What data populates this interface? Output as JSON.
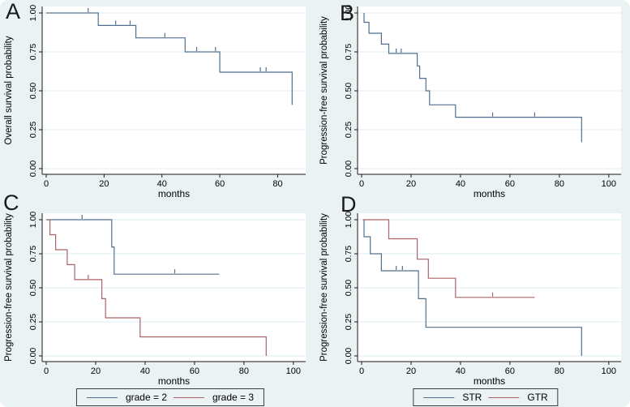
{
  "figure": {
    "background": "#eaf2f3",
    "plot_background": "#ffffff",
    "grid_color": "#ddecf3",
    "axis_color": "#1a1a1a",
    "text_color": "#000000"
  },
  "chart_data": [
    {
      "label": "A",
      "type": "line",
      "subtype": "kaplan-meier-step",
      "xlabel": "months",
      "ylabel": "Overall survival probability",
      "xlim": [
        0,
        88
      ],
      "xticks": [
        0,
        20,
        40,
        60,
        80
      ],
      "xtick_labels": [
        "0",
        "20",
        "40",
        "60",
        "80"
      ],
      "ylim": [
        0,
        1
      ],
      "yticks": [
        0,
        0.25,
        0.5,
        0.75,
        1
      ],
      "ytick_labels": [
        "0.00",
        "0.25",
        "0.50",
        "0.75",
        "1.00"
      ],
      "grid": true,
      "legend": null,
      "series": [
        {
          "color": "#52708e",
          "points": [
            [
              0,
              1
            ],
            [
              18,
              1
            ],
            [
              18,
              0.92
            ],
            [
              31,
              0.92
            ],
            [
              31,
              0.84
            ],
            [
              48,
              0.84
            ],
            [
              48,
              0.75
            ],
            [
              60,
              0.75
            ],
            [
              60,
              0.62
            ],
            [
              85,
              0.62
            ],
            [
              85,
              0.41
            ]
          ],
          "censor_marks": [
            [
              14.5,
              1
            ],
            [
              24,
              0.92
            ],
            [
              29,
              0.92
            ],
            [
              41,
              0.84
            ],
            [
              52,
              0.75
            ],
            [
              58.5,
              0.75
            ],
            [
              74,
              0.62
            ],
            [
              76,
              0.62
            ]
          ]
        }
      ]
    },
    {
      "label": "B",
      "type": "line",
      "subtype": "kaplan-meier-step",
      "xlabel": "months",
      "ylabel": "Progression-free survival probability",
      "xlim": [
        0,
        103
      ],
      "xticks": [
        0,
        20,
        40,
        60,
        80,
        100
      ],
      "xtick_labels": [
        "0",
        "20",
        "40",
        "60",
        "80",
        "100"
      ],
      "ylim": [
        0,
        1
      ],
      "yticks": [
        0,
        0.25,
        0.5,
        0.75,
        1
      ],
      "ytick_labels": [
        "0.00",
        "0.25",
        "0.50",
        "0.75",
        "1.00"
      ],
      "grid": true,
      "legend": null,
      "series": [
        {
          "color": "#52708e",
          "points": [
            [
              1,
              1
            ],
            [
              1,
              0.94
            ],
            [
              3,
              0.94
            ],
            [
              3,
              0.87
            ],
            [
              8,
              0.87
            ],
            [
              8,
              0.8
            ],
            [
              11,
              0.8
            ],
            [
              11,
              0.74
            ],
            [
              22.5,
              0.74
            ],
            [
              22.5,
              0.66
            ],
            [
              23.5,
              0.66
            ],
            [
              23.5,
              0.58
            ],
            [
              26,
              0.58
            ],
            [
              26,
              0.5
            ],
            [
              27.5,
              0.5
            ],
            [
              27.5,
              0.41
            ],
            [
              38,
              0.41
            ],
            [
              38,
              0.33
            ],
            [
              89,
              0.33
            ],
            [
              89,
              0.17
            ]
          ],
          "censor_marks": [
            [
              14,
              0.74
            ],
            [
              16,
              0.74
            ],
            [
              53,
              0.33
            ],
            [
              70,
              0.33
            ]
          ]
        }
      ]
    },
    {
      "label": "C",
      "type": "line",
      "subtype": "kaplan-meier-step",
      "xlabel": "months",
      "ylabel": "Progression-free survival probability",
      "xlim": [
        0,
        103
      ],
      "xticks": [
        0,
        20,
        40,
        60,
        80,
        100
      ],
      "xtick_labels": [
        "0",
        "20",
        "40",
        "60",
        "80",
        "100"
      ],
      "ylim": [
        0,
        1
      ],
      "yticks": [
        0,
        0.25,
        0.5,
        0.75,
        1
      ],
      "ytick_labels": [
        "0.00",
        "0.25",
        "0.50",
        "0.75",
        "1.00"
      ],
      "grid": true,
      "legend": {
        "position": "bottom"
      },
      "series": [
        {
          "name": "grade = 2",
          "color": "#52708e",
          "points": [
            [
              0,
              1
            ],
            [
              26.5,
              1
            ],
            [
              26.5,
              0.8
            ],
            [
              27.5,
              0.8
            ],
            [
              27.5,
              0.6
            ],
            [
              70,
              0.6
            ]
          ],
          "censor_marks": [
            [
              14.5,
              1
            ],
            [
              52,
              0.6
            ]
          ]
        },
        {
          "name": "grade = 3",
          "color": "#ab6368",
          "points": [
            [
              0.5,
              1
            ],
            [
              1.5,
              1
            ],
            [
              1.5,
              0.89
            ],
            [
              3.8,
              0.89
            ],
            [
              3.8,
              0.78
            ],
            [
              8.5,
              0.78
            ],
            [
              8.5,
              0.67
            ],
            [
              11.5,
              0.67
            ],
            [
              11.5,
              0.56
            ],
            [
              22.5,
              0.56
            ],
            [
              22.5,
              0.42
            ],
            [
              24,
              0.42
            ],
            [
              24,
              0.28
            ],
            [
              38,
              0.28
            ],
            [
              38,
              0.14
            ],
            [
              89,
              0.14
            ],
            [
              89,
              0
            ]
          ],
          "censor_marks": [
            [
              17,
              0.56
            ]
          ]
        }
      ]
    },
    {
      "label": "D",
      "type": "line",
      "subtype": "kaplan-meier-step",
      "xlabel": "months",
      "ylabel": "Progression-free survival probability",
      "xlim": [
        0,
        103
      ],
      "xticks": [
        0,
        20,
        40,
        60,
        80,
        100
      ],
      "xtick_labels": [
        "0",
        "20",
        "40",
        "60",
        "80",
        "100"
      ],
      "ylim": [
        0,
        1
      ],
      "yticks": [
        0,
        0.25,
        0.5,
        0.75,
        1
      ],
      "ytick_labels": [
        "0.00",
        "0.25",
        "0.50",
        "0.75",
        "1.00"
      ],
      "grid": true,
      "legend": {
        "position": "bottom"
      },
      "series": [
        {
          "name": "STR",
          "color": "#52708e",
          "points": [
            [
              1,
              1
            ],
            [
              1,
              0.875
            ],
            [
              3.5,
              0.875
            ],
            [
              3.5,
              0.75
            ],
            [
              8,
              0.75
            ],
            [
              8,
              0.625
            ],
            [
              23,
              0.625
            ],
            [
              23,
              0.42
            ],
            [
              26,
              0.42
            ],
            [
              26,
              0.21
            ],
            [
              89,
              0.21
            ],
            [
              89,
              0
            ]
          ],
          "censor_marks": [
            [
              14,
              0.625
            ],
            [
              16.5,
              0.625
            ]
          ]
        },
        {
          "name": "GTR",
          "color": "#ab6368",
          "points": [
            [
              0.5,
              1
            ],
            [
              11,
              1
            ],
            [
              11,
              0.86
            ],
            [
              22.5,
              0.86
            ],
            [
              22.5,
              0.71
            ],
            [
              27,
              0.71
            ],
            [
              27,
              0.57
            ],
            [
              38,
              0.57
            ],
            [
              38,
              0.43
            ],
            [
              70,
              0.43
            ]
          ],
          "censor_marks": [
            [
              53,
              0.43
            ]
          ]
        }
      ]
    }
  ]
}
